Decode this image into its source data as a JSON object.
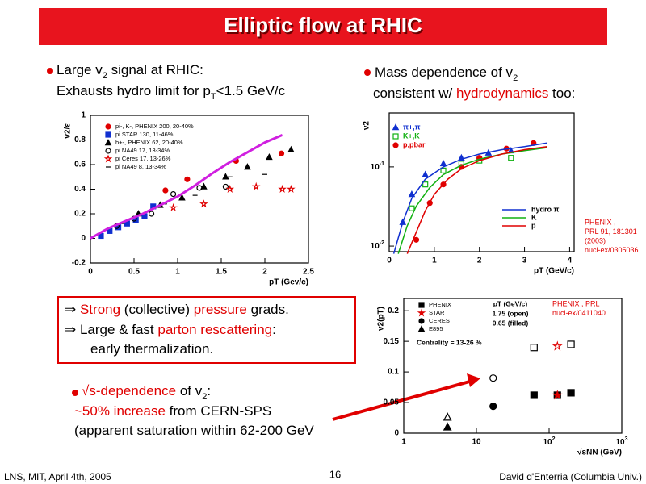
{
  "title": "Elliptic flow at RHIC",
  "bullets": {
    "left": [
      [
        {
          "text": "Large v"
        },
        {
          "text": "2",
          "style": "sub"
        },
        {
          "text": " signal at RHIC:"
        }
      ],
      [
        {
          "text": "Exhausts hydro limit for p"
        },
        {
          "text": "T",
          "style": "sub"
        },
        {
          "text": "<1.5 GeV/c"
        }
      ]
    ],
    "right": [
      [
        {
          "text": "Mass dependence of v"
        },
        {
          "text": "2",
          "style": "sub"
        }
      ],
      [
        {
          "text": "consistent w/ "
        },
        {
          "text": "hydrodynamics",
          "style": "red"
        },
        {
          "text": " too:"
        }
      ]
    ],
    "box": [
      [
        {
          "text": "⇒  "
        },
        {
          "text": "Strong",
          "style": "red"
        },
        {
          "text": " (collective) "
        },
        {
          "text": "pressure",
          "style": "red"
        },
        {
          "text": " grads."
        }
      ],
      [
        {
          "text": "⇒  Large & fast "
        },
        {
          "text": "parton rescattering",
          "style": "red"
        },
        {
          "text": ":"
        }
      ],
      [
        {
          "text": "early thermalization."
        }
      ]
    ],
    "sqrts": [
      [
        {
          "text": "√s-dependence",
          "style": "red"
        },
        {
          "text": " of v"
        },
        {
          "text": "2",
          "style": "sub"
        },
        {
          "text": ":"
        }
      ],
      [
        {
          "text": "~50% increase",
          "style": "red"
        },
        {
          "text": " from CERN-SPS"
        }
      ],
      [
        {
          "text": "(apparent saturation within 62-200 GeV"
        }
      ]
    ]
  },
  "plots": [
    {
      "xlim": [
        0,
        2.5
      ],
      "ylim": [
        -0.2,
        1
      ],
      "xticks": [
        0,
        0.5,
        1,
        1.5,
        2,
        2.5
      ],
      "yticks": [
        -0.2,
        0,
        0.2,
        0.4,
        0.6,
        0.8,
        1
      ],
      "xlabel": "pT (Gev/c)",
      "ylabel": "v2/ε",
      "series": [
        {
          "name": "pi-, K-, PHENIX 200, 20-40%",
          "color": "#e00000",
          "marker": "circle",
          "filled": true,
          "x": [
            0.86,
            1.11,
            1.67,
            2.19
          ],
          "y": [
            0.39,
            0.48,
            0.63,
            0.69
          ]
        },
        {
          "name": "pi STAR 130, 11-46%",
          "color": "#1030d0",
          "marker": "square",
          "filled": true,
          "x": [
            0.12,
            0.22,
            0.32,
            0.42,
            0.52,
            0.62,
            0.72
          ],
          "y": [
            0.02,
            0.06,
            0.09,
            0.12,
            0.15,
            0.18,
            0.26
          ]
        },
        {
          "name": "h+-, PHENIX 62, 20-40%",
          "color": "#000000",
          "marker": "triangle",
          "filled": true,
          "x": [
            0.55,
            0.8,
            1.05,
            1.3,
            1.55,
            1.8,
            2.05,
            2.3
          ],
          "y": [
            0.2,
            0.27,
            0.33,
            0.42,
            0.5,
            0.58,
            0.66,
            0.72
          ]
        },
        {
          "name": "pi NA49 17, 13-34%",
          "color": "#000000",
          "marker": "circle",
          "filled": false,
          "x": [
            0.3,
            0.5,
            0.7,
            0.95,
            1.25,
            1.55
          ],
          "y": [
            0.1,
            0.16,
            0.2,
            0.36,
            0.41,
            0.42
          ]
        },
        {
          "name": "pi Ceres 17, 13-26%",
          "color": "#e00000",
          "marker": "star",
          "filled": false,
          "x": [
            0.95,
            1.3,
            1.6,
            1.9,
            2.2,
            2.3
          ],
          "y": [
            0.25,
            0.28,
            0.4,
            0.42,
            0.4,
            0.4
          ]
        },
        {
          "name": "pi NA49 8, 13-34%",
          "color": "#000000",
          "marker": "dash",
          "filled": false,
          "x": [
            0.35,
            0.6,
            0.85,
            1.2,
            1.6,
            2.0
          ],
          "y": [
            0.12,
            0.2,
            0.28,
            0.35,
            0.5,
            0.52
          ]
        },
        {
          "color": "#d020e0",
          "line": true,
          "x": [
            0,
            0.2,
            0.4,
            0.6,
            0.8,
            1.0,
            1.2,
            1.4,
            1.6,
            1.8,
            2.0,
            2.2
          ],
          "y": [
            0,
            0.08,
            0.14,
            0.2,
            0.27,
            0.34,
            0.43,
            0.53,
            0.62,
            0.7,
            0.78,
            0.84
          ]
        }
      ]
    },
    {
      "xlim": [
        0,
        4.1
      ],
      "ylim": [
        0.0085,
        0.48
      ],
      "log_y": true,
      "xticks": [
        0,
        1,
        2,
        3,
        4
      ],
      "yticks": [
        {
          "value": 0.01,
          "label": "10",
          "exponent": "-2"
        },
        {
          "value": 0.1,
          "label": "10",
          "exponent": "-1"
        }
      ],
      "xlabel": "pT (GeV/c)",
      "ylabel": "v2",
      "series": [
        {
          "name": "π+,π−",
          "color": "#1030d0",
          "marker": "triangle",
          "filled": true,
          "x": [
            0.3,
            0.5,
            0.8,
            1.2,
            1.6,
            2.2,
            2.7
          ],
          "y": [
            0.02,
            0.045,
            0.08,
            0.11,
            0.13,
            0.15,
            0.16
          ]
        },
        {
          "name": "K+,K−",
          "color": "#10b010",
          "marker": "square",
          "filled": false,
          "x": [
            0.5,
            0.8,
            1.2,
            1.6,
            2.0,
            2.7
          ],
          "y": [
            0.03,
            0.06,
            0.09,
            0.11,
            0.12,
            0.13
          ]
        },
        {
          "name": "p,pbar",
          "color": "#e00000",
          "marker": "circle",
          "filled": true,
          "x": [
            0.6,
            0.9,
            1.2,
            1.6,
            2.0,
            2.6,
            3.2
          ],
          "y": [
            0.012,
            0.035,
            0.06,
            0.1,
            0.13,
            0.17,
            0.2
          ]
        },
        {
          "name": "hydro π",
          "color": "#1030d0",
          "line": true,
          "x": [
            0.1,
            0.3,
            0.5,
            0.8,
            1.2,
            1.6,
            2,
            2.5,
            3,
            3.5
          ],
          "y": [
            0.008,
            0.02,
            0.04,
            0.07,
            0.1,
            0.125,
            0.145,
            0.165,
            0.18,
            0.2
          ]
        },
        {
          "name": "K",
          "color": "#10b010",
          "line": true,
          "x": [
            0.2,
            0.4,
            0.6,
            0.9,
            1.2,
            1.6,
            2,
            2.5,
            3,
            3.5
          ],
          "y": [
            0.008,
            0.018,
            0.032,
            0.055,
            0.08,
            0.105,
            0.125,
            0.145,
            0.16,
            0.175
          ]
        },
        {
          "name": "p",
          "color": "#e00000",
          "line": true,
          "x": [
            0.4,
            0.6,
            0.8,
            1.0,
            1.3,
            1.6,
            2,
            2.5,
            3,
            3.5
          ],
          "y": [
            0.008,
            0.015,
            0.028,
            0.045,
            0.07,
            0.095,
            0.12,
            0.145,
            0.165,
            0.18
          ]
        }
      ],
      "note": [
        "PHENIX ,",
        "PRL 91, 181301",
        "(2003)",
        "nucl-ex/0305036"
      ]
    },
    {
      "xlim": [
        1,
        1000
      ],
      "ylim": [
        0,
        0.22
      ],
      "log_x": true,
      "xticks": [
        1,
        10,
        {
          "value": 100,
          "label": "10",
          "exponent": "2"
        },
        {
          "value": 1000,
          "label": "10",
          "exponent": "3"
        }
      ],
      "yticks": [
        0,
        0.05,
        0.1,
        0.15,
        0.2
      ],
      "xlabel": "√sNN (GeV)",
      "ylabel": "v2(pT)",
      "series": [
        {
          "name": "PHENIX",
          "color": "#000000",
          "marker": "square",
          "filled": true,
          "x": [
            62,
            130,
            200
          ],
          "y": [
            0.062,
            0.062,
            0.066
          ]
        },
        {
          "color": "#000000",
          "marker": "square",
          "filled": false,
          "x": [
            62,
            200
          ],
          "y": [
            0.14,
            0.145
          ]
        },
        {
          "name": "STAR",
          "color": "#e00000",
          "marker": "star",
          "filled": true,
          "x": [
            130
          ],
          "y": [
            0.062
          ]
        },
        {
          "color": "#e00000",
          "marker": "star",
          "filled": false,
          "x": [
            130
          ],
          "y": [
            0.142
          ]
        },
        {
          "name": "CERES",
          "color": "#000000",
          "marker": "circle",
          "filled": true,
          "x": [
            17
          ],
          "y": [
            0.044
          ]
        },
        {
          "color": "#000000",
          "marker": "circle",
          "filled": false,
          "x": [
            17
          ],
          "y": [
            0.09
          ]
        },
        {
          "name": "E895",
          "color": "#000000",
          "marker": "triangle",
          "filled": true,
          "x": [
            4
          ],
          "y": [
            0.01
          ]
        },
        {
          "color": "#000000",
          "marker": "triangle",
          "filled": false,
          "x": [
            4
          ],
          "y": [
            0.026
          ]
        }
      ],
      "info": [
        "pT (GeV/c)",
        "1.75 (open)",
        "0.65 (filled)"
      ],
      "centrality": "Centrality = 13-26 %",
      "note": [
        "PHENIX , PRL",
        "nucl-ex/0411040"
      ]
    }
  ],
  "footer": {
    "left": "LNS, MIT, April 4th, 2005",
    "page": "16",
    "right": "David d'Enterria (Columbia Univ.)"
  }
}
